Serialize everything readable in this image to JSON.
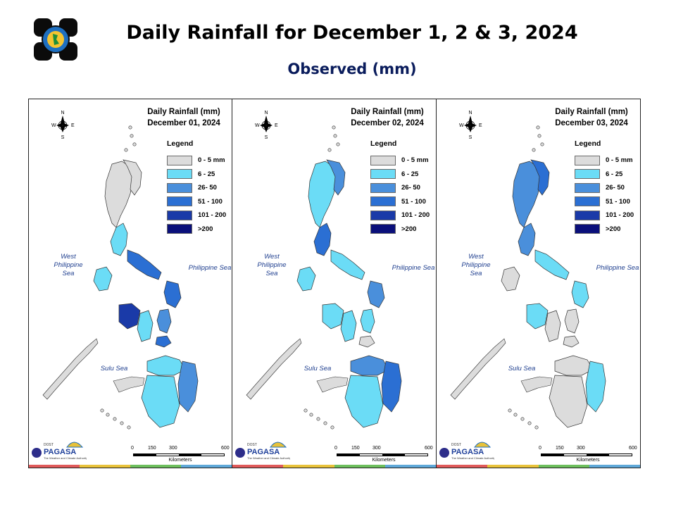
{
  "header": {
    "title": "Daily Rainfall for December 1, 2 & 3, 2024",
    "subtitle": "Observed (mm)",
    "logo_icon": "pagasa-seal-icon"
  },
  "legend": {
    "title": "Legend",
    "items": [
      {
        "label": "0 - 5 mm",
        "color": "#dcdcdc"
      },
      {
        "label": "6 - 25",
        "color": "#6bdcf6"
      },
      {
        "label": "26- 50",
        "color": "#4a8fdb"
      },
      {
        "label": "51 - 100",
        "color": "#2b6fd3"
      },
      {
        "label": "101 - 200",
        "color": "#1a3aa8"
      },
      {
        "label": ">200",
        "color": "#0a0f7a"
      }
    ]
  },
  "labels": {
    "west_sea": "West\nPhilippine Sea",
    "philippine_sea": "Philippine Sea",
    "sulu_sea": "Sulu Sea",
    "compass_n": "N",
    "compass_s": "S",
    "compass_e": "E",
    "compass_w": "W",
    "scale_ticks": [
      "0",
      "150",
      "300",
      "600"
    ],
    "scale_unit": "Kilometers",
    "footer_agency": "PAGASA",
    "footer_dost": "DOST",
    "footer_tagline": "The Weather and Climate Authority"
  },
  "colors": {
    "land_default": "#dcdcdc",
    "footer_strip": [
      "#e05a5a",
      "#e8c23a",
      "#6dbf5d",
      "#5fa8d8"
    ]
  },
  "maps": [
    {
      "title_line1": "Daily Rainfall (mm)",
      "title_line2": "December 01, 2024",
      "zones": [
        {
          "zone": "north-luzon",
          "class": "0 - 5 mm"
        },
        {
          "zone": "cagayan-north",
          "class": "0 - 5 mm"
        },
        {
          "zone": "central-luzon-east",
          "class": "6 - 25"
        },
        {
          "zone": "bicol",
          "class": "51 - 100"
        },
        {
          "zone": "mindoro",
          "class": "6 - 25"
        },
        {
          "zone": "panay",
          "class": "101 - 200"
        },
        {
          "zone": "samar",
          "class": "51 - 100"
        },
        {
          "zone": "leyte",
          "class": "26- 50"
        },
        {
          "zone": "negros",
          "class": "6 - 25"
        },
        {
          "zone": "bohol",
          "class": "51 - 100"
        },
        {
          "zone": "mindanao-north",
          "class": "6 - 25"
        },
        {
          "zone": "mindanao-east",
          "class": "26- 50"
        },
        {
          "zone": "mindanao-south",
          "class": "6 - 25"
        }
      ]
    },
    {
      "title_line1": "Daily Rainfall (mm)",
      "title_line2": "December 02, 2024",
      "zones": [
        {
          "zone": "north-luzon",
          "class": "6 - 25"
        },
        {
          "zone": "cagayan-north",
          "class": "26- 50"
        },
        {
          "zone": "central-luzon-east",
          "class": "51 - 100"
        },
        {
          "zone": "bicol",
          "class": "6 - 25"
        },
        {
          "zone": "mindoro",
          "class": "6 - 25"
        },
        {
          "zone": "panay",
          "class": "6 - 25"
        },
        {
          "zone": "samar",
          "class": "26- 50"
        },
        {
          "zone": "leyte",
          "class": "6 - 25"
        },
        {
          "zone": "negros",
          "class": "6 - 25"
        },
        {
          "zone": "bohol",
          "class": "0 - 5 mm"
        },
        {
          "zone": "mindanao-north",
          "class": "26- 50"
        },
        {
          "zone": "mindanao-east",
          "class": "51 - 100"
        },
        {
          "zone": "mindanao-south",
          "class": "6 - 25"
        }
      ]
    },
    {
      "title_line1": "Daily Rainfall (mm)",
      "title_line2": "December 03, 2024",
      "zones": [
        {
          "zone": "north-luzon",
          "class": "26- 50"
        },
        {
          "zone": "cagayan-north",
          "class": "51 - 100"
        },
        {
          "zone": "central-luzon-east",
          "class": "26- 50"
        },
        {
          "zone": "bicol",
          "class": "6 - 25"
        },
        {
          "zone": "mindoro",
          "class": "0 - 5 mm"
        },
        {
          "zone": "panay",
          "class": "6 - 25"
        },
        {
          "zone": "samar",
          "class": "6 - 25"
        },
        {
          "zone": "leyte",
          "class": "0 - 5 mm"
        },
        {
          "zone": "negros",
          "class": "0 - 5 mm"
        },
        {
          "zone": "bohol",
          "class": "0 - 5 mm"
        },
        {
          "zone": "mindanao-north",
          "class": "0 - 5 mm"
        },
        {
          "zone": "mindanao-east",
          "class": "6 - 25"
        },
        {
          "zone": "mindanao-south",
          "class": "0 - 5 mm"
        }
      ]
    }
  ]
}
